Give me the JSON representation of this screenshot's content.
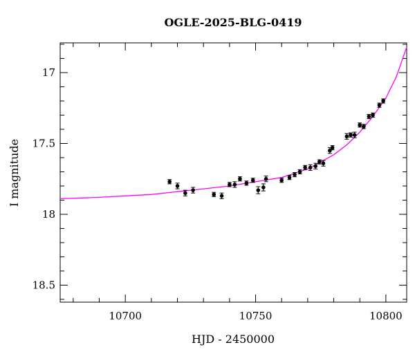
{
  "chart_data": {
    "type": "scatter",
    "title": "OGLE-2025-BLG-0419",
    "xlabel": "HJD - 2450000",
    "ylabel": "I magnitude",
    "xlim": [
      10675,
      10808
    ],
    "ylim": [
      18.62,
      16.79
    ],
    "y_inverted": true,
    "grid": false,
    "x_ticks_major": [
      10700,
      10750,
      10800
    ],
    "x_tick_labels": [
      "10700",
      "10750",
      "10800"
    ],
    "x_minor_step": 10,
    "y_ticks_major": [
      17,
      17.5,
      18,
      18.5
    ],
    "y_tick_labels": [
      "17",
      "17.5",
      "18",
      "18.5"
    ],
    "y_minor_step": 0.1,
    "colors": {
      "points": "#000000",
      "model": "#ff00ff",
      "axes": "#000000"
    },
    "series": [
      {
        "kind": "points_with_errorbars",
        "x": [
          10717.0,
          10720.0,
          10723.0,
          10726.0,
          10734.0,
          10737.0,
          10740.0,
          10742.0,
          10744.0,
          10746.5,
          10749.0,
          10751.0,
          10753.0,
          10754.0,
          10760.0,
          10763.0,
          10765.0,
          10767.0,
          10769.0,
          10771.0,
          10773.0,
          10774.5,
          10776.0,
          10778.5,
          10779.5,
          10785.0,
          10786.5,
          10788.0,
          10790.0,
          10791.5,
          10793.5,
          10795.0,
          10797.5,
          10799.0
        ],
        "y": [
          17.77,
          17.8,
          17.85,
          17.83,
          17.86,
          17.87,
          17.79,
          17.79,
          17.75,
          17.78,
          17.76,
          17.83,
          17.81,
          17.75,
          17.76,
          17.74,
          17.72,
          17.7,
          17.67,
          17.67,
          17.66,
          17.63,
          17.64,
          17.55,
          17.53,
          17.45,
          17.44,
          17.44,
          17.37,
          17.38,
          17.31,
          17.3,
          17.23,
          17.2
        ],
        "err": [
          0.015,
          0.02,
          0.02,
          0.02,
          0.015,
          0.02,
          0.015,
          0.02,
          0.015,
          0.015,
          0.015,
          0.025,
          0.025,
          0.02,
          0.015,
          0.015,
          0.015,
          0.015,
          0.015,
          0.02,
          0.02,
          0.015,
          0.02,
          0.02,
          0.015,
          0.02,
          0.015,
          0.02,
          0.015,
          0.015,
          0.015,
          0.015,
          0.015,
          0.015
        ]
      },
      {
        "kind": "model_curve",
        "x": [
          10675,
          10690,
          10700,
          10710,
          10720,
          10730,
          10740,
          10750,
          10760,
          10770,
          10780,
          10785,
          10790,
          10795,
          10800,
          10804,
          10808
        ],
        "y": [
          17.89,
          17.88,
          17.87,
          17.86,
          17.84,
          17.82,
          17.8,
          17.77,
          17.74,
          17.68,
          17.58,
          17.51,
          17.42,
          17.31,
          17.18,
          17.03,
          16.82
        ]
      }
    ]
  }
}
